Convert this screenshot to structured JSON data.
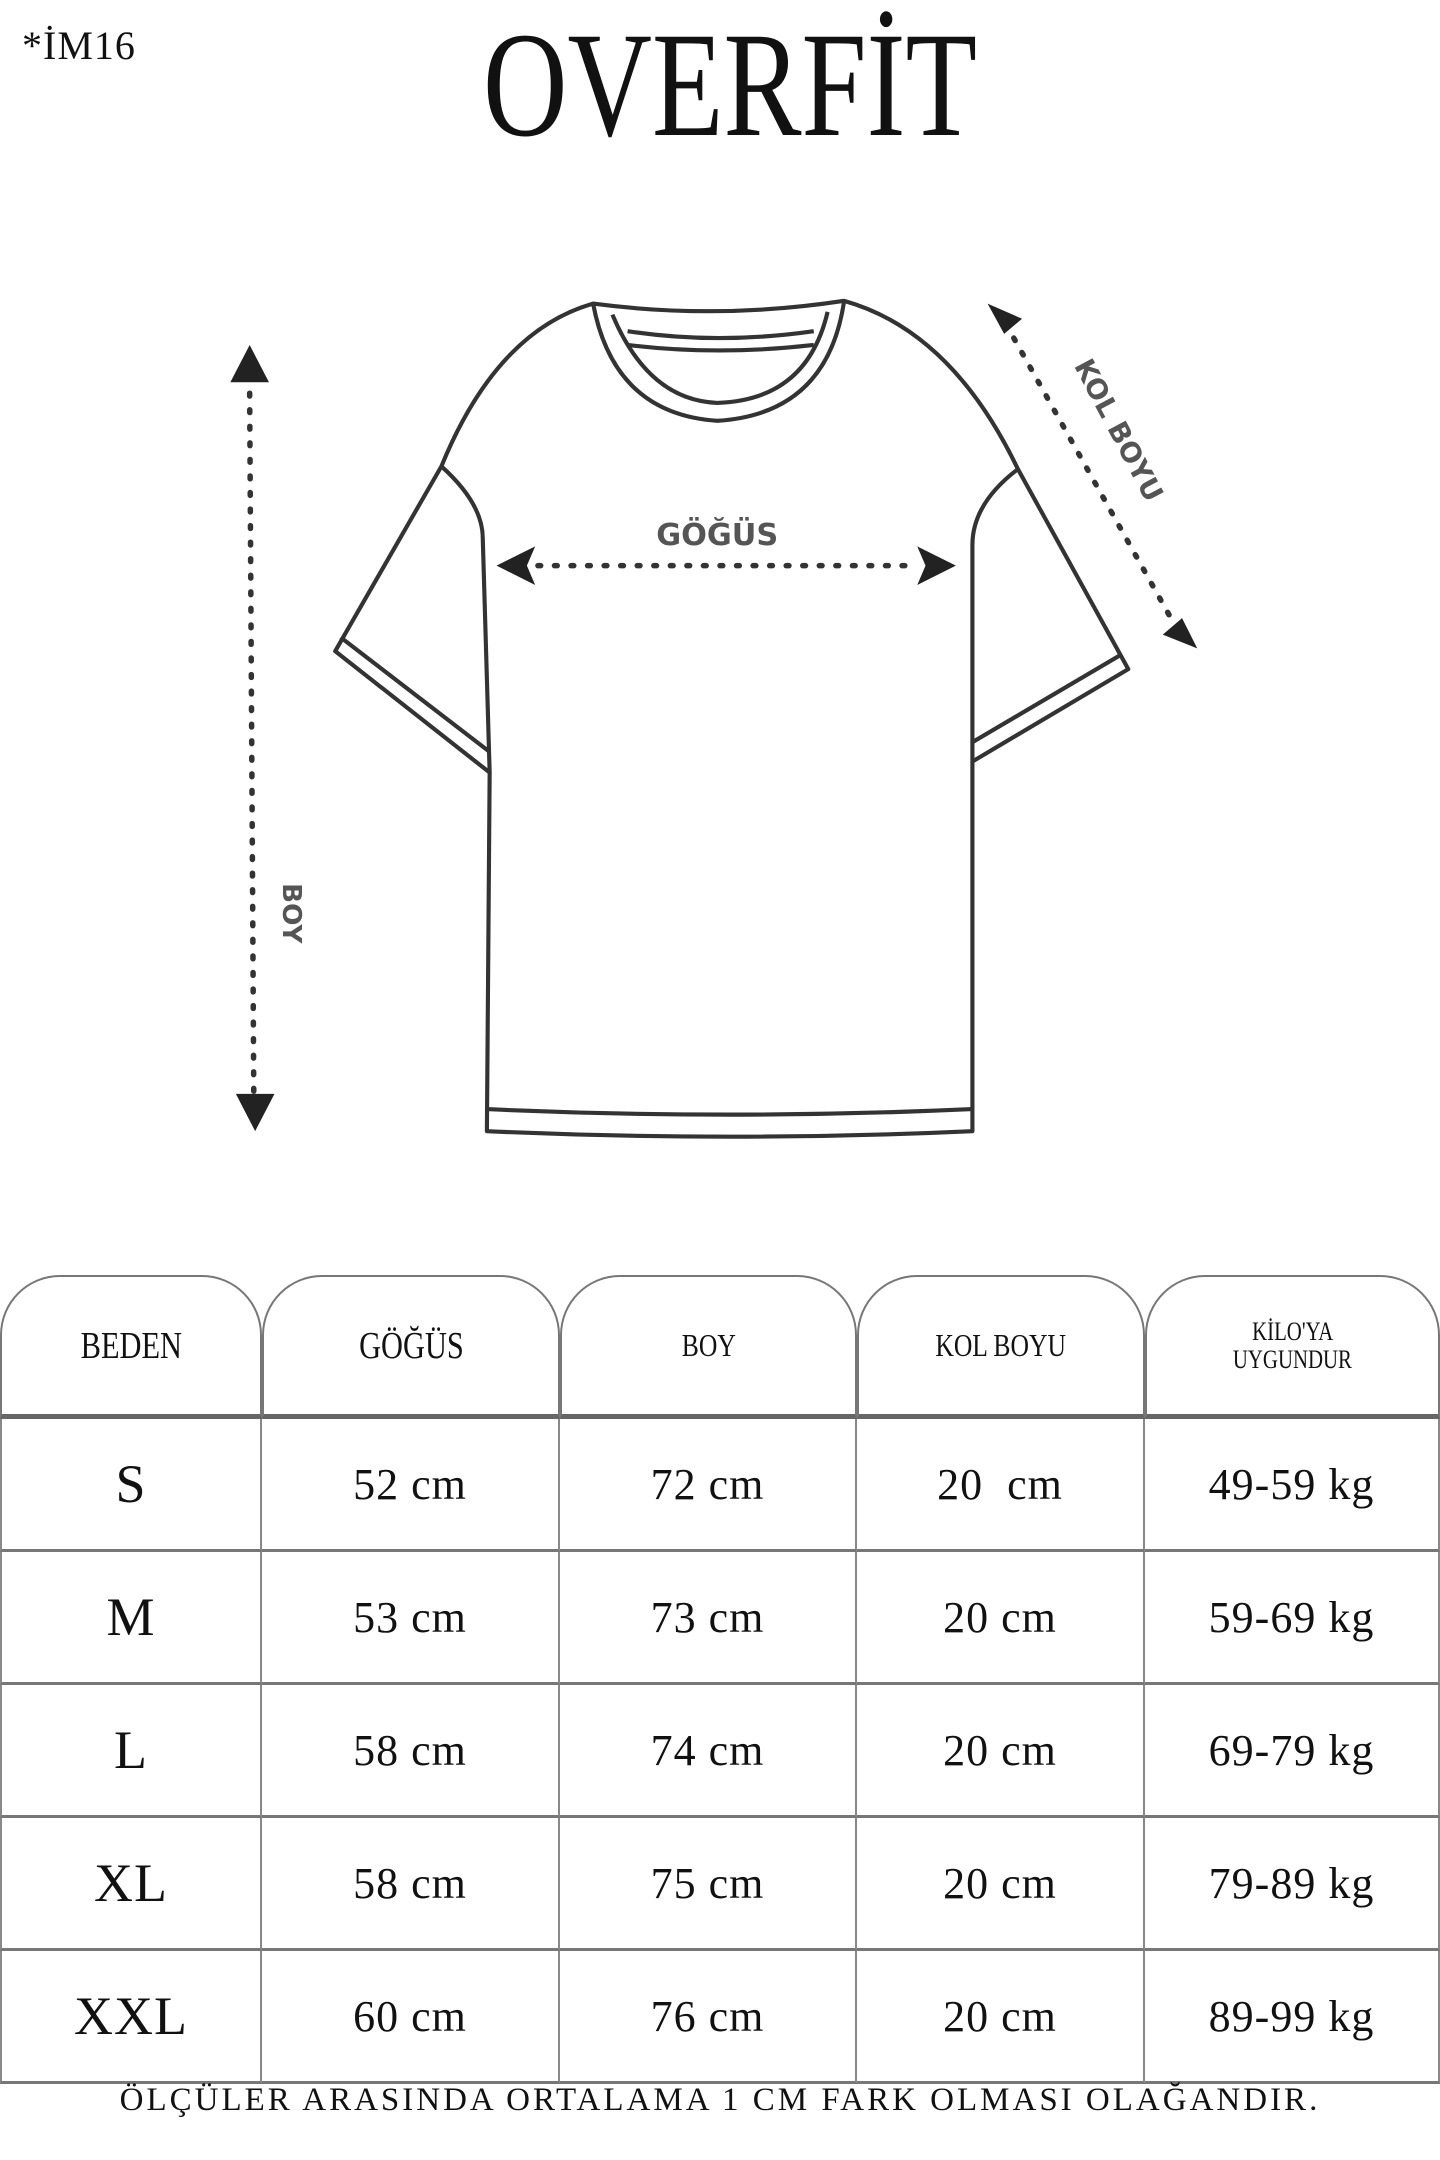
{
  "product_code": "*İM16",
  "title": "OVERFİT",
  "diagram": {
    "chest_label": "GÖĞÜS",
    "length_label": "BOY",
    "sleeve_label": "KOL BOYU"
  },
  "table": {
    "headers": [
      "BEDEN",
      "GÖĞÜS",
      "BOY",
      "KOL BOYU",
      "KİLO'YA UYGUNDUR"
    ],
    "header_weight_line1": "KİLO'YA",
    "header_weight_line2": "UYGUNDUR",
    "rows": [
      [
        "S",
        "52 cm",
        "72 cm",
        "20  cm",
        "49-59 kg"
      ],
      [
        "M",
        "53 cm",
        "73 cm",
        "20 cm",
        "59-69 kg"
      ],
      [
        "L",
        "58 cm",
        "74 cm",
        "20 cm",
        "69-79 kg"
      ],
      [
        "XL",
        "58 cm",
        "75 cm",
        "20 cm",
        "79-89 kg"
      ],
      [
        "XXL",
        "60 cm",
        "76 cm",
        "20 cm",
        "89-99 kg"
      ]
    ]
  },
  "footer_note": "ÖLÇÜLER ARASINDA ORTALAMA 1 CM FARK OLMASI OLAĞANDIR."
}
